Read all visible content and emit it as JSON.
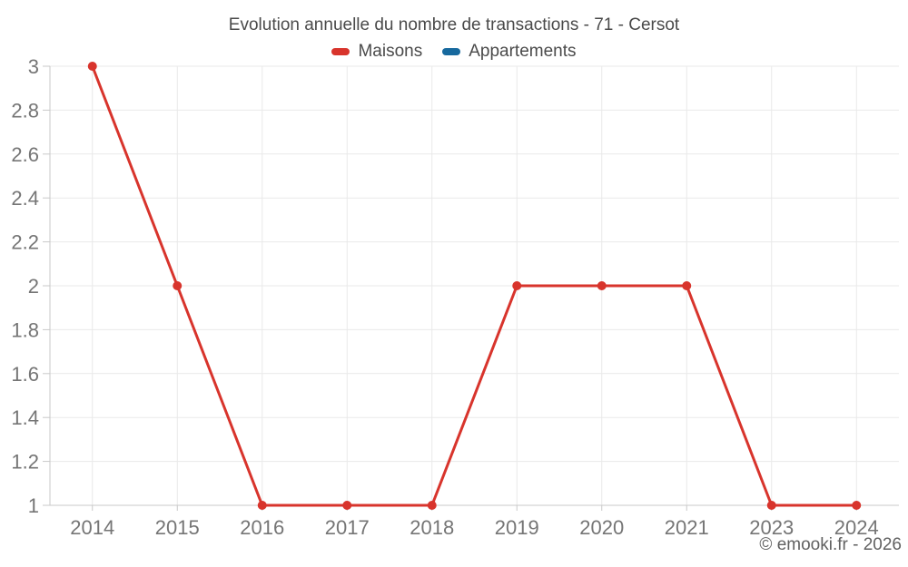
{
  "header": {
    "title": "Evolution annuelle du nombre de transactions - 71 - Cersot"
  },
  "legend": {
    "items": [
      {
        "label": "Maisons",
        "color": "#d8342c"
      },
      {
        "label": "Appartements",
        "color": "#17699e"
      }
    ]
  },
  "footer": {
    "copyright": "© emooki.fr - 2026"
  },
  "chart_data": {
    "type": "line",
    "title": "Evolution annuelle du nombre de transactions - 71 - Cersot",
    "categories": [
      "2014",
      "2015",
      "2016",
      "2017",
      "2018",
      "2019",
      "2020",
      "2021",
      "2023",
      "2024"
    ],
    "series": [
      {
        "name": "Maisons",
        "color": "#d8342c",
        "values": [
          3,
          2,
          1,
          1,
          1,
          2,
          2,
          2,
          1,
          1
        ]
      },
      {
        "name": "Appartements",
        "color": "#17699e",
        "values": []
      }
    ],
    "xlabel": "",
    "ylabel": "",
    "ylim": [
      1,
      3
    ],
    "yticks": [
      1,
      1.2,
      1.4,
      1.6,
      1.8,
      2,
      2.2,
      2.4,
      2.6,
      2.8,
      3
    ],
    "ytick_labels": [
      "1",
      "1.2",
      "1.4",
      "1.6",
      "1.8",
      "2",
      "2.2",
      "2.4",
      "2.6",
      "2.8",
      "3"
    ],
    "grid": true,
    "legend_position": "top"
  },
  "style": {
    "background": "#ffffff",
    "grid_color": "#e9e9e9",
    "axis_color": "#c9c9c9",
    "axis_text_color": "#757575",
    "title_color": "#4a4a4a",
    "copyright_color": "#616161",
    "marker_radius": 5,
    "line_width": 3
  }
}
